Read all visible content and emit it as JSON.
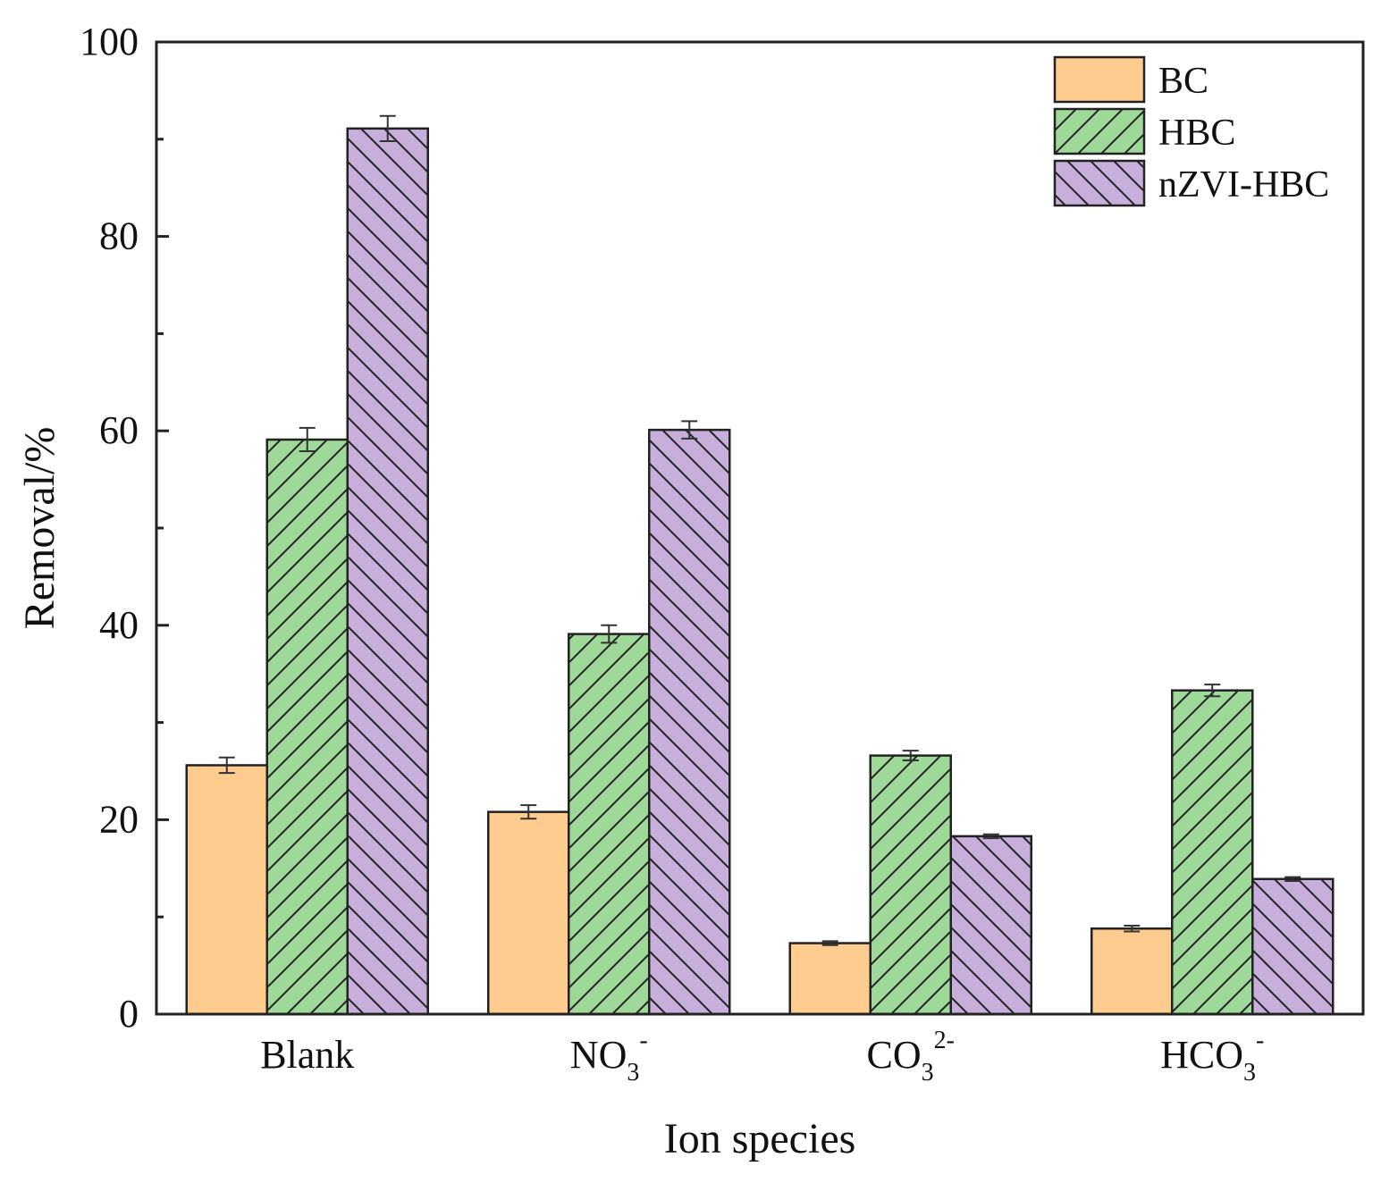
{
  "chart_data": {
    "type": "bar",
    "title": "",
    "xlabel": "Ion species",
    "ylabel": "Removal/%",
    "ylim": [
      0,
      100
    ],
    "yticks": [
      0,
      20,
      40,
      60,
      80,
      100
    ],
    "categories": [
      {
        "base": "Blank",
        "sub": "",
        "sup": ""
      },
      {
        "base": "NO",
        "sub": "3",
        "sup": "-"
      },
      {
        "base": "CO",
        "sub": "3",
        "sup": "2-"
      },
      {
        "base": "HCO",
        "sub": "3",
        "sup": "-"
      }
    ],
    "series": [
      {
        "name": "BC",
        "color": "#FFCC90",
        "pattern": "none",
        "values": [
          25.6,
          20.8,
          7.3,
          8.8
        ],
        "errors": [
          0.8,
          0.7,
          0.2,
          0.3
        ]
      },
      {
        "name": "HBC",
        "color": "#9FD99A",
        "pattern": "forward-hatch",
        "values": [
          59.1,
          39.1,
          26.6,
          33.3
        ],
        "errors": [
          1.2,
          0.9,
          0.5,
          0.6
        ]
      },
      {
        "name": "nZVI-HBC",
        "color": "#C7AEDB",
        "pattern": "backward-hatch",
        "values": [
          91.1,
          60.1,
          18.3,
          13.9
        ],
        "errors": [
          1.3,
          0.9,
          0.2,
          0.2
        ]
      }
    ],
    "legend_position": "top-right",
    "grid": false
  }
}
